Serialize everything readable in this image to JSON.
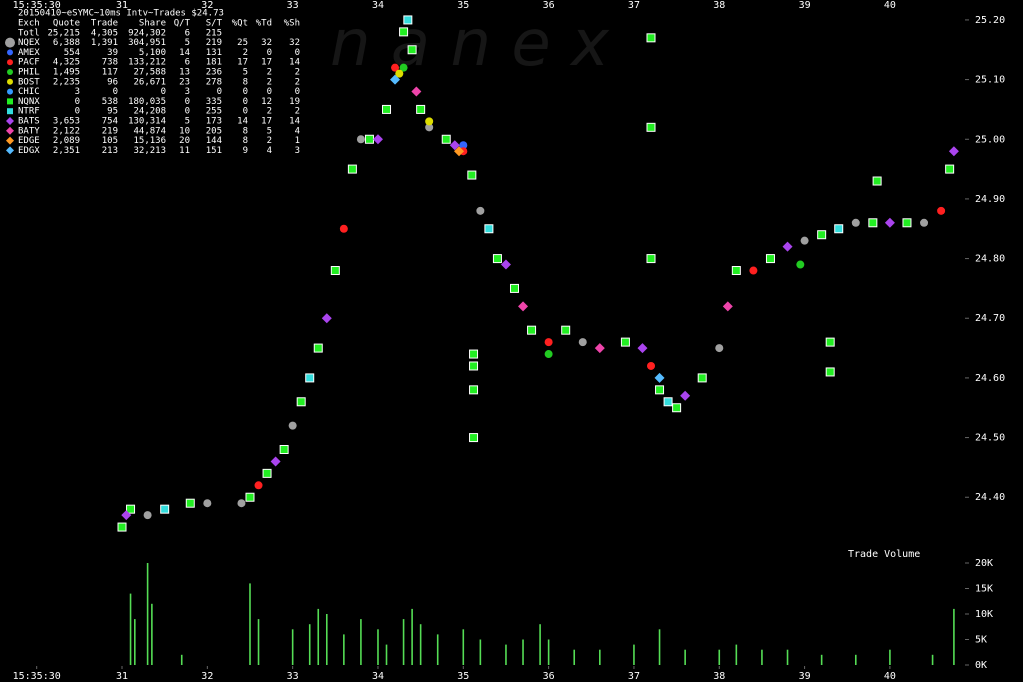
{
  "chart_data": {
    "type": "scatter",
    "title": "20150410~eSYMC~10ms Intv~Trades $24.73",
    "watermark": "n a n e x",
    "xlim": [
      29.57,
      40.88
    ],
    "xticks": [
      {
        "value": 30,
        "label": "15:35:30"
      },
      31,
      32,
      33,
      34,
      35,
      36,
      37,
      38,
      39,
      40
    ],
    "ylim": [
      24.33,
      25.22
    ],
    "yticks": [
      {
        "value": 24.4,
        "label": "24.40"
      },
      {
        "value": 24.5,
        "label": "24.50"
      },
      {
        "value": 24.6,
        "label": "24.60"
      },
      {
        "value": 24.7,
        "label": "24.70"
      },
      {
        "value": 24.8,
        "label": "24.80"
      },
      {
        "value": 24.9,
        "label": "24.90"
      },
      {
        "value": 25.0,
        "label": "25.00"
      },
      {
        "value": 25.1,
        "label": "25.10"
      },
      {
        "value": 25.2,
        "label": "25.20"
      }
    ],
    "legend": {
      "columns": [
        "Exch",
        "Quote",
        "Trade",
        "Share",
        "Q/T",
        "S/T",
        "%Qt",
        "%Td",
        "%Sh"
      ],
      "total": [
        "Totl",
        "25,215",
        "4,305",
        "924,302",
        "6",
        "215"
      ]
    },
    "series": [
      {
        "name": "NQEX",
        "color": "#a0a0a0",
        "marker": "circle",
        "stats": [
          "6,388",
          "1,391",
          "304,951",
          "5",
          "219",
          "25",
          "32",
          "32"
        ],
        "x": [
          31.3,
          32.0,
          32.4,
          33.0,
          33.8,
          34.6,
          35.2,
          36.4,
          38.0,
          39.0,
          39.6,
          40.4
        ],
        "values": [
          24.37,
          24.39,
          24.39,
          24.52,
          25.0,
          25.02,
          24.88,
          24.66,
          24.65,
          24.83,
          24.86,
          24.86
        ]
      },
      {
        "name": "AMEX",
        "color": "#3366ff",
        "marker": "circle",
        "stats": [
          "554",
          "39",
          "5,100",
          "14",
          "131",
          "2",
          "0",
          "0"
        ],
        "x": [
          35.0
        ],
        "values": [
          24.99
        ]
      },
      {
        "name": "PACF",
        "color": "#ff2020",
        "marker": "circle",
        "stats": [
          "4,325",
          "738",
          "133,212",
          "6",
          "181",
          "17",
          "17",
          "14"
        ],
        "x": [
          32.6,
          33.6,
          34.2,
          35.0,
          36.0,
          37.2,
          38.4,
          40.6
        ],
        "values": [
          24.42,
          24.85,
          25.12,
          24.98,
          24.66,
          24.62,
          24.78,
          24.88
        ]
      },
      {
        "name": "PHIL",
        "color": "#22cc22",
        "marker": "circle",
        "stats": [
          "1,495",
          "117",
          "27,588",
          "13",
          "236",
          "5",
          "2",
          "2"
        ],
        "x": [
          34.3,
          36.0,
          38.95
        ],
        "values": [
          25.12,
          24.64,
          24.79
        ]
      },
      {
        "name": "BOST",
        "color": "#dddd00",
        "marker": "circle",
        "stats": [
          "2,235",
          "96",
          "26,671",
          "23",
          "278",
          "8",
          "2",
          "2"
        ],
        "x": [
          34.25,
          34.6
        ],
        "values": [
          25.11,
          25.03
        ]
      },
      {
        "name": "CHIC",
        "color": "#3399ff",
        "marker": "circle",
        "stats": [
          "3",
          "0",
          "0",
          "3",
          "0",
          "0",
          "0",
          "0"
        ],
        "x": [],
        "values": []
      },
      {
        "name": "NQNX",
        "color": "#22ee22",
        "marker": "square",
        "stats": [
          "0",
          "538",
          "180,035",
          "0",
          "335",
          "0",
          "12",
          "19"
        ],
        "x": [
          31.0,
          31.1,
          31.8,
          32.5,
          32.7,
          32.9,
          33.1,
          33.3,
          33.5,
          33.7,
          33.9,
          34.1,
          34.3,
          34.4,
          34.5,
          34.8,
          35.1,
          35.4,
          35.6,
          35.8,
          36.2,
          36.9,
          37.3,
          37.5,
          37.8,
          38.2,
          38.6,
          39.2,
          39.8,
          40.2,
          40.7,
          35.12,
          35.12,
          35.12,
          35.12,
          37.2,
          37.2,
          37.2,
          39.85,
          39.3,
          39.3
        ],
        "values": [
          24.35,
          24.38,
          24.39,
          24.4,
          24.44,
          24.48,
          24.56,
          24.65,
          24.78,
          24.95,
          25.0,
          25.05,
          25.18,
          25.15,
          25.05,
          25.0,
          24.94,
          24.8,
          24.75,
          24.68,
          24.68,
          24.66,
          24.58,
          24.55,
          24.6,
          24.78,
          24.8,
          24.84,
          24.86,
          24.86,
          24.95,
          24.64,
          24.62,
          24.58,
          24.5,
          25.17,
          25.02,
          24.8,
          24.93,
          24.66,
          24.61
        ]
      },
      {
        "name": "NTRF",
        "color": "#33dddd",
        "marker": "square",
        "stats": [
          "0",
          "95",
          "24,208",
          "0",
          "255",
          "0",
          "2",
          "2"
        ],
        "x": [
          31.5,
          33.2,
          34.35,
          35.3,
          37.4,
          39.4
        ],
        "values": [
          24.38,
          24.6,
          25.2,
          24.85,
          24.56,
          24.85
        ]
      },
      {
        "name": "BATS",
        "color": "#aa44ee",
        "marker": "diamond",
        "stats": [
          "3,653",
          "754",
          "130,314",
          "5",
          "173",
          "14",
          "17",
          "14"
        ],
        "x": [
          31.05,
          32.8,
          33.4,
          34.0,
          34.9,
          35.5,
          37.1,
          37.6,
          38.8,
          40.0,
          40.75
        ],
        "values": [
          24.37,
          24.46,
          24.7,
          25.0,
          24.99,
          24.79,
          24.65,
          24.57,
          24.82,
          24.86,
          24.98
        ]
      },
      {
        "name": "BATY",
        "color": "#ee44aa",
        "marker": "diamond",
        "stats": [
          "2,122",
          "219",
          "44,874",
          "10",
          "205",
          "8",
          "5",
          "4"
        ],
        "x": [
          34.45,
          35.7,
          36.6,
          38.1
        ],
        "values": [
          25.08,
          24.72,
          24.65,
          24.72
        ]
      },
      {
        "name": "EDGE",
        "color": "#ff9922",
        "marker": "diamond",
        "stats": [
          "2,089",
          "105",
          "15,136",
          "20",
          "144",
          "8",
          "2",
          "1"
        ],
        "x": [
          34.95
        ],
        "values": [
          24.98
        ]
      },
      {
        "name": "EDGX",
        "color": "#55bbff",
        "marker": "diamond",
        "stats": [
          "2,351",
          "213",
          "32,213",
          "11",
          "151",
          "9",
          "4",
          "3"
        ],
        "x": [
          34.2,
          37.3
        ],
        "values": [
          25.1,
          24.6
        ]
      }
    ],
    "volume": {
      "title": "Trade Volume",
      "color": "#55dd55",
      "ylim": [
        0,
        20000
      ],
      "yticks": [
        {
          "value": 0,
          "label": "0K"
        },
        {
          "value": 5000,
          "label": "5K"
        },
        {
          "value": 10000,
          "label": "10K"
        },
        {
          "value": 15000,
          "label": "15K"
        },
        {
          "value": 20000,
          "label": "20K"
        }
      ],
      "x": [
        31.1,
        31.15,
        31.3,
        31.35,
        31.7,
        32.5,
        32.6,
        33.0,
        33.2,
        33.3,
        33.4,
        33.6,
        33.8,
        34.0,
        34.1,
        34.3,
        34.4,
        34.5,
        34.7,
        35.0,
        35.2,
        35.5,
        35.7,
        35.9,
        36.0,
        36.3,
        36.6,
        37.0,
        37.3,
        37.6,
        38.0,
        38.2,
        38.5,
        38.8,
        39.2,
        39.6,
        40.0,
        40.5,
        40.75
      ],
      "values": [
        14000,
        9000,
        20000,
        12000,
        2000,
        16000,
        9000,
        7000,
        8000,
        11000,
        10000,
        6000,
        9000,
        7000,
        4000,
        9000,
        11000,
        8000,
        6000,
        7000,
        5000,
        4000,
        5000,
        8000,
        5000,
        3000,
        3000,
        4000,
        7000,
        3000,
        3000,
        4000,
        3000,
        3000,
        2000,
        2000,
        3000,
        2000,
        11000
      ]
    }
  }
}
